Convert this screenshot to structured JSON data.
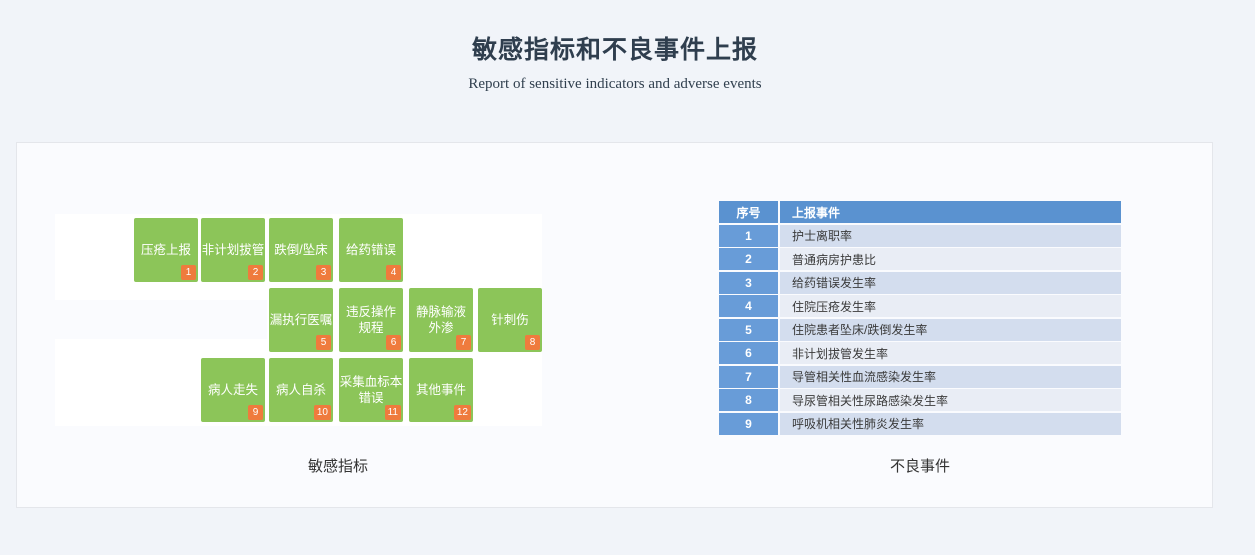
{
  "header": {
    "title": "敏感指标和不良事件上报",
    "subtitle": "Report of sensitive indicators and adverse events"
  },
  "sensitive_indicators": {
    "caption": "敏感指标",
    "tiles": [
      {
        "num": "1",
        "label": "压疮上报",
        "row": 0,
        "col": 0
      },
      {
        "num": "2",
        "label": "非计划拔管",
        "row": 0,
        "col": 1
      },
      {
        "num": "3",
        "label": "跌倒/坠床",
        "row": 0,
        "col": 2
      },
      {
        "num": "4",
        "label": "给药错误",
        "row": 0,
        "col": 3
      },
      {
        "num": "5",
        "label": "漏执行医嘱",
        "row": 1,
        "col": 2
      },
      {
        "num": "6",
        "label": "违反操作\n规程",
        "row": 1,
        "col": 3
      },
      {
        "num": "7",
        "label": "静脉输液\n外渗",
        "row": 1,
        "col": 4
      },
      {
        "num": "8",
        "label": "针刺伤",
        "row": 1,
        "col": 5
      },
      {
        "num": "9",
        "label": "病人走失",
        "row": 2,
        "col": 1
      },
      {
        "num": "10",
        "label": "病人自杀",
        "row": 2,
        "col": 2
      },
      {
        "num": "11",
        "label": "采集血标本\n错误",
        "row": 2,
        "col": 3
      },
      {
        "num": "12",
        "label": "其他事件",
        "row": 2,
        "col": 4
      }
    ]
  },
  "adverse_events": {
    "caption": "不良事件",
    "table": {
      "headers": [
        "序号",
        "上报事件"
      ],
      "rows": [
        [
          "1",
          "护士离职率"
        ],
        [
          "2",
          "普通病房护患比"
        ],
        [
          "3",
          "给药错误发生率"
        ],
        [
          "4",
          "住院压疮发生率"
        ],
        [
          "5",
          "住院患者坠床/跌倒发生率"
        ],
        [
          "6",
          "非计划拔管发生率"
        ],
        [
          "7",
          "导管相关性血流感染发生率"
        ],
        [
          "8",
          "导尿管相关性尿路感染发生率"
        ],
        [
          "9",
          "呼吸机相关性肺炎发生率"
        ]
      ]
    }
  },
  "colors": {
    "page_bg": "#f1f4f9",
    "card_bg": "#fafbfe",
    "tile_green": "#8cc559",
    "badge_orange": "#ef7b3d",
    "table_header_blue": "#5a92d0",
    "table_index_blue": "#689cd8",
    "row_dark": "#d3ddee",
    "row_light": "#e9edf5"
  }
}
